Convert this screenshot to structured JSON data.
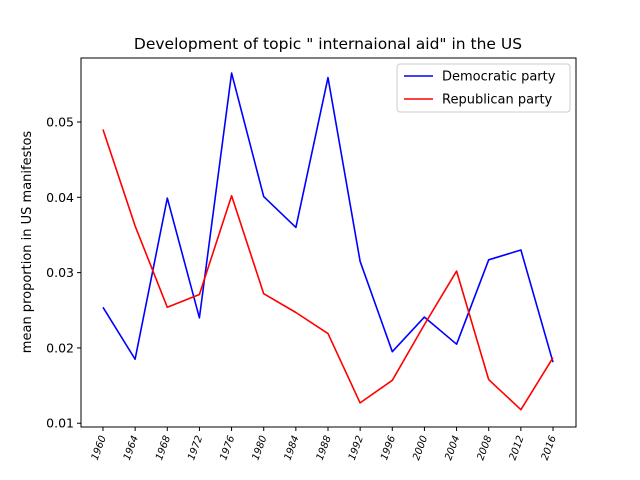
{
  "chart_data": {
    "type": "line",
    "title": "Development of topic \" internaional aid\" in the US",
    "xlabel": "",
    "ylabel": "mean proportion in US manifestos",
    "categories": [
      "1960",
      "1964",
      "1968",
      "1972",
      "1976",
      "1980",
      "1984",
      "1988",
      "1992",
      "1996",
      "2000",
      "2004",
      "2008",
      "2012",
      "2016"
    ],
    "ylim": [
      0.0095,
      0.0585
    ],
    "yticks": [
      0.01,
      0.02,
      0.03,
      0.04,
      0.05
    ],
    "ytick_labels": [
      "0.01",
      "0.02",
      "0.03",
      "0.04",
      "0.05"
    ],
    "grid": false,
    "legend_position": "top-right",
    "series": [
      {
        "name": "Democratic party",
        "color": "#0000ff",
        "values": [
          0.0254,
          0.0185,
          0.0399,
          0.024,
          0.0565,
          0.0401,
          0.036,
          0.0559,
          0.0315,
          0.0195,
          0.0241,
          0.0205,
          0.0317,
          0.033,
          0.0181
        ]
      },
      {
        "name": "Republican party",
        "color": "#ff0000",
        "values": [
          0.049,
          0.0362,
          0.0254,
          0.0271,
          0.0402,
          0.0272,
          0.0247,
          0.0219,
          0.0127,
          0.0157,
          0.0231,
          0.0302,
          0.0158,
          0.0118,
          0.0187
        ]
      }
    ]
  }
}
